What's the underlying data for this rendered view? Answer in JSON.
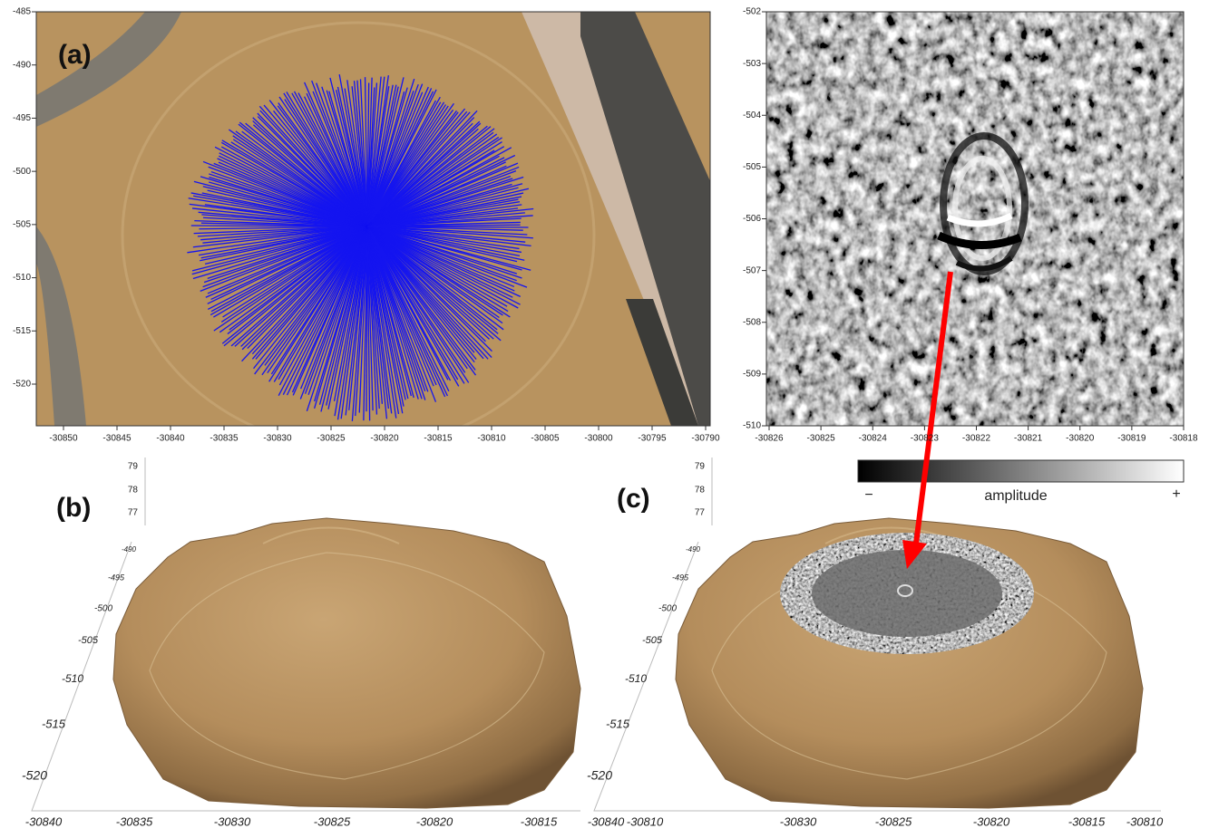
{
  "panels": {
    "a": {
      "label": "(a)",
      "xticks": [
        -30850,
        -30845,
        -30840,
        -30835,
        -30830,
        -30825,
        -30820,
        -30815,
        -30810,
        -30805,
        -30800,
        -30795,
        -30790
      ],
      "yticks": [
        -485,
        -490,
        -495,
        -500,
        -505,
        -510,
        -515,
        -520
      ]
    },
    "radargram": {
      "xticks": [
        -30826,
        -30825,
        -30824,
        -30823,
        -30822,
        -30821,
        -30820,
        -30819,
        -30818
      ],
      "yticks": [
        -502,
        -503,
        -504,
        -505,
        -506,
        -507,
        -508,
        -509,
        -510
      ]
    },
    "colorbar": {
      "min_label": "−",
      "title": "amplitude",
      "max_label": "+"
    },
    "b": {
      "label": "(b)",
      "zticks": [
        79,
        78,
        77
      ],
      "yticks": [
        -490,
        -495,
        -500,
        -505,
        -510,
        -515,
        -520
      ],
      "xticks": [
        -30840,
        -30835,
        -30830,
        -30825,
        -30820,
        -30815,
        -30810
      ]
    },
    "c": {
      "label": "(c)",
      "zticks": [
        79,
        78,
        77
      ],
      "yticks": [
        -490,
        -495,
        -500,
        -505,
        -510,
        -515,
        -520
      ],
      "xticks": [
        -30840,
        -30830,
        -30825,
        -30820,
        -30815,
        -30810
      ]
    }
  }
}
